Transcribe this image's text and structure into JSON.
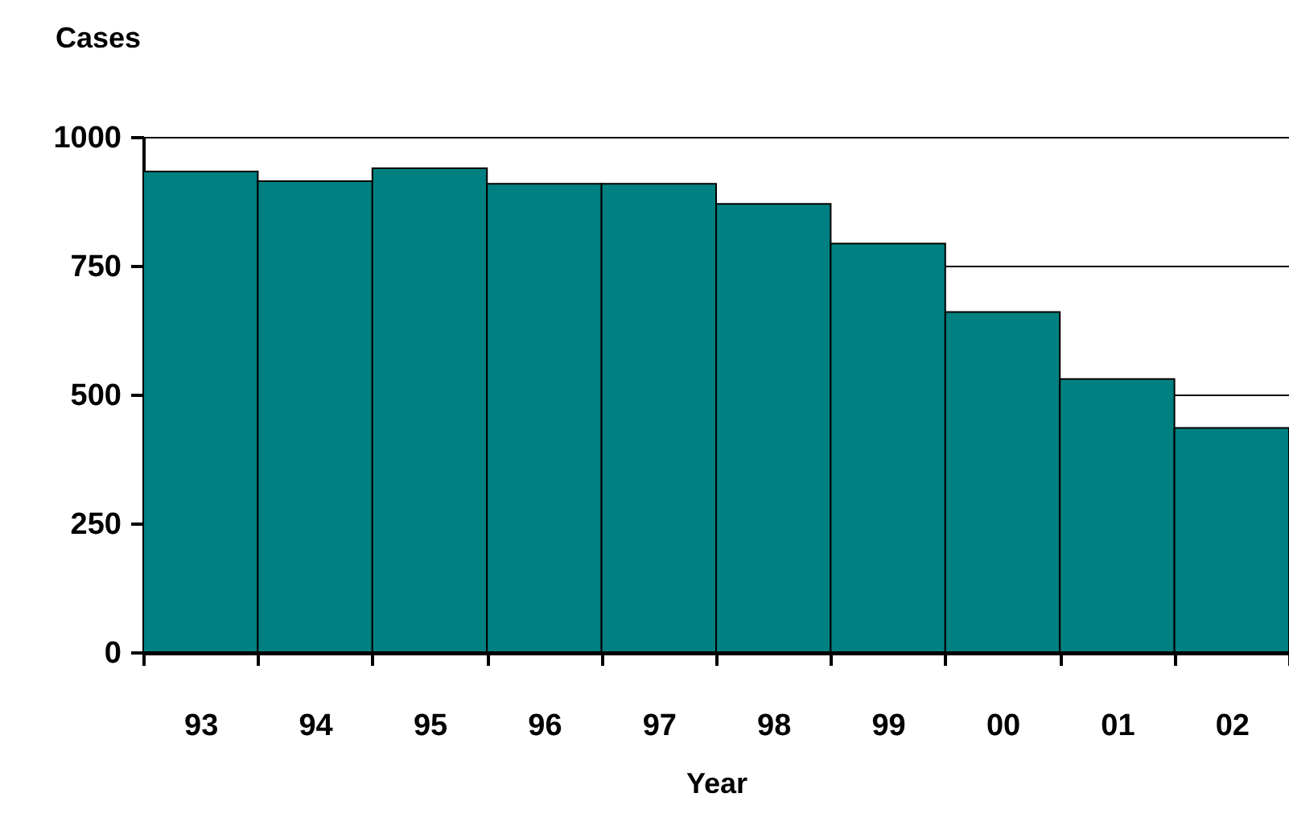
{
  "chart_data": {
    "type": "bar",
    "ylabel": "Cases",
    "xlabel": "Year",
    "categories": [
      "93",
      "94",
      "95",
      "96",
      "97",
      "98",
      "99",
      "00",
      "01",
      "02"
    ],
    "values": [
      933,
      914,
      939,
      909,
      909,
      870,
      793,
      660,
      530,
      435
    ],
    "color": "#008080",
    "ylim": [
      0,
      1000
    ],
    "yticks": [
      0,
      250,
      500,
      750,
      1000
    ],
    "grid": "y"
  }
}
